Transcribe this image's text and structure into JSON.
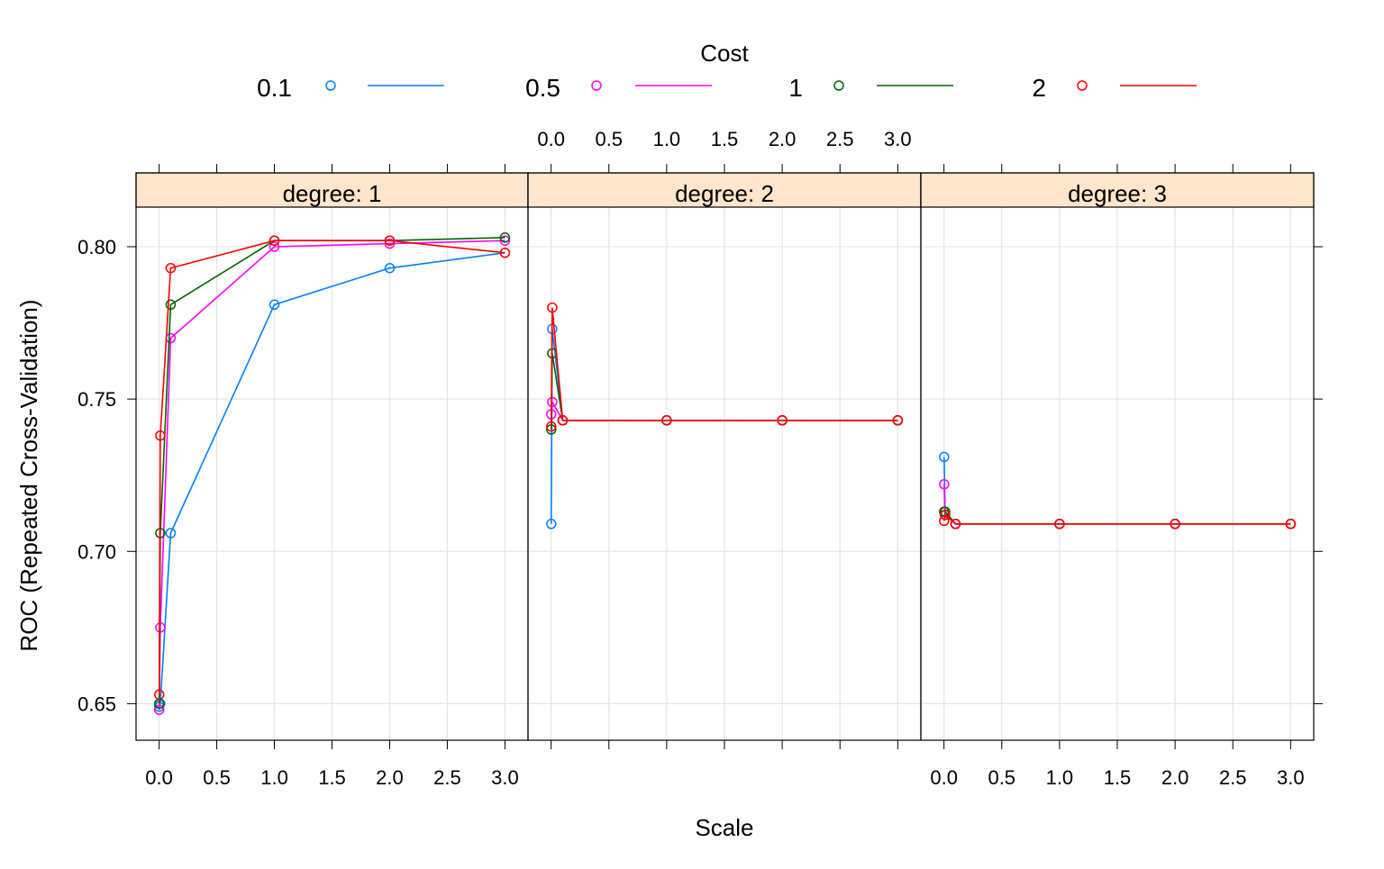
{
  "legend": {
    "title": "Cost",
    "entries": [
      {
        "label": "0.1",
        "color": "#0080ff"
      },
      {
        "label": "0.5",
        "color": "#ff00ff"
      },
      {
        "label": "1",
        "color": "#006400"
      },
      {
        "label": "2",
        "color": "#ff0000"
      }
    ]
  },
  "chart_data": {
    "type": "line",
    "xlabel": "Scale",
    "ylabel": "ROC (Repeated Cross-Validation)",
    "xlim": [
      -0.2,
      3.2
    ],
    "ylim": [
      0.638,
      0.813
    ],
    "x_ticks": [
      "0.0",
      "0.5",
      "1.0",
      "1.5",
      "2.0",
      "2.5",
      "3.0"
    ],
    "y_ticks": [
      "0.65",
      "0.70",
      "0.75",
      "0.80"
    ],
    "grid": true,
    "legend_position": "top",
    "x": [
      0.001,
      0.01,
      0.1,
      1,
      2,
      3
    ],
    "panels": [
      {
        "strip": "degree: 1",
        "series": [
          {
            "name": "0.1",
            "color": "#0080ff",
            "values": [
              0.649,
              0.65,
              0.706,
              0.781,
              0.793,
              0.798
            ]
          },
          {
            "name": "0.5",
            "color": "#ff00ff",
            "values": [
              0.648,
              0.675,
              0.77,
              0.8,
              0.801,
              0.802
            ]
          },
          {
            "name": "1",
            "color": "#006400",
            "values": [
              0.65,
              0.706,
              0.781,
              0.802,
              0.802,
              0.803
            ]
          },
          {
            "name": "2",
            "color": "#ff0000",
            "values": [
              0.653,
              0.738,
              0.793,
              0.802,
              0.802,
              0.798
            ]
          }
        ]
      },
      {
        "strip": "degree: 2",
        "series": [
          {
            "name": "0.1",
            "color": "#0080ff",
            "values": [
              0.709,
              0.773,
              0.743,
              0.743,
              0.743,
              0.743
            ]
          },
          {
            "name": "0.5",
            "color": "#ff00ff",
            "values": [
              0.745,
              0.749,
              0.743,
              0.743,
              0.743,
              0.743
            ]
          },
          {
            "name": "1",
            "color": "#006400",
            "values": [
              0.74,
              0.765,
              0.743,
              0.743,
              0.743,
              0.743
            ]
          },
          {
            "name": "2",
            "color": "#ff0000",
            "values": [
              0.741,
              0.78,
              0.743,
              0.743,
              0.743,
              0.743
            ]
          }
        ]
      },
      {
        "strip": "degree: 3",
        "series": [
          {
            "name": "0.1",
            "color": "#0080ff",
            "values": [
              0.731,
              0.713,
              0.709,
              0.709,
              0.709,
              0.709
            ]
          },
          {
            "name": "0.5",
            "color": "#ff00ff",
            "values": [
              0.722,
              0.712,
              0.709,
              0.709,
              0.709,
              0.709
            ]
          },
          {
            "name": "1",
            "color": "#006400",
            "values": [
              0.713,
              0.713,
              0.709,
              0.709,
              0.709,
              0.709
            ]
          },
          {
            "name": "2",
            "color": "#ff0000",
            "values": [
              0.71,
              0.712,
              0.709,
              0.709,
              0.709,
              0.709
            ]
          }
        ]
      }
    ]
  }
}
